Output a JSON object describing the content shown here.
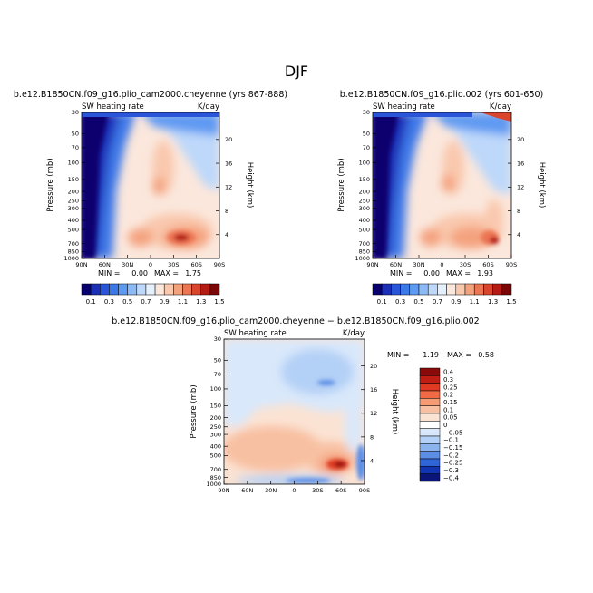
{
  "page_title": "DJF",
  "chart_data": [
    {
      "type": "heatmap",
      "title": "b.e12.B1850CN.f09_g16.plio_cam2000.cheyenne (yrs 867-888)",
      "subtitle_left": "SW heating rate",
      "units": "K/day",
      "xlabel": "",
      "ylabel": "Pressure (mb)",
      "y2label": "Height (km)",
      "x_ticks": [
        "90N",
        "60N",
        "30N",
        "0",
        "30S",
        "60S",
        "90S"
      ],
      "y_ticks": [
        "30",
        "50",
        "70",
        "100",
        "150",
        "200",
        "250",
        "300",
        "400",
        "500",
        "700",
        "850",
        "1000"
      ],
      "y2_ticks": [
        "20",
        "16",
        "12",
        "8",
        "4"
      ],
      "stats": {
        "min_label": "MIN =",
        "min": "0.00",
        "max_label": "MAX =",
        "max": "1.75"
      },
      "colorbar_labels": [
        "0.1",
        "0.3",
        "0.5",
        "0.7",
        "0.9",
        "1.1",
        "1.3",
        "1.5"
      ]
    },
    {
      "type": "heatmap",
      "title": "b.e12.B1850CN.f09_g16.plio.002 (yrs 601-650)",
      "subtitle_left": "SW heating rate",
      "units": "K/day",
      "xlabel": "",
      "ylabel": "Pressure (mb)",
      "y2label": "Height (km)",
      "x_ticks": [
        "90N",
        "60N",
        "30N",
        "0",
        "30S",
        "60S",
        "90S"
      ],
      "y_ticks": [
        "30",
        "50",
        "70",
        "100",
        "150",
        "200",
        "250",
        "300",
        "400",
        "500",
        "700",
        "850",
        "1000"
      ],
      "y2_ticks": [
        "20",
        "16",
        "12",
        "8",
        "4"
      ],
      "stats": {
        "min_label": "MIN =",
        "min": "0.00",
        "max_label": "MAX =",
        "max": "1.93"
      },
      "colorbar_labels": [
        "0.1",
        "0.3",
        "0.5",
        "0.7",
        "0.9",
        "1.1",
        "1.3",
        "1.5"
      ]
    },
    {
      "type": "heatmap",
      "title": "b.e12.B1850CN.f09_g16.plio_cam2000.cheyenne − b.e12.B1850CN.f09_g16.plio.002",
      "subtitle_left": "SW heating rate",
      "units": "K/day",
      "xlabel": "",
      "ylabel": "Pressure (mb)",
      "y2label": "Height (km)",
      "x_ticks": [
        "90N",
        "60N",
        "30N",
        "0",
        "30S",
        "60S",
        "90S"
      ],
      "y_ticks": [
        "30",
        "50",
        "70",
        "100",
        "150",
        "200",
        "250",
        "300",
        "400",
        "500",
        "700",
        "850",
        "1000"
      ],
      "y2_ticks": [
        "20",
        "16",
        "12",
        "8",
        "4"
      ],
      "stats": {
        "min_label": "MIN =",
        "min": "−1.19",
        "max_label": "MAX =",
        "max": "0.58"
      },
      "colorbar_labels": [
        "0.4",
        "0.3",
        "0.25",
        "0.2",
        "0.15",
        "0.1",
        "0.05",
        "0",
        "−0.05",
        "−0.1",
        "−0.15",
        "−0.2",
        "−0.25",
        "−0.3",
        "−0.4"
      ]
    }
  ],
  "colors": {
    "seq_palette": [
      "#08006e",
      "#1a2fb5",
      "#2a55d8",
      "#3d78e8",
      "#5f9af2",
      "#8cbaf7",
      "#bdd8fa",
      "#e4f0fc",
      "#fbe7dc",
      "#f9c8ad",
      "#f4a27e",
      "#ec7553",
      "#d9452d",
      "#b31b14",
      "#7a0607"
    ],
    "div_palette": [
      "#8a0a0a",
      "#c01d14",
      "#e03a22",
      "#ef6a45",
      "#f49a74",
      "#f8c0a2",
      "#fbe3d3",
      "#ffffff",
      "#d9e8fb",
      "#b3d0f6",
      "#8bb4ef",
      "#5c8ee6",
      "#2f63d6",
      "#1234b2",
      "#0b1478"
    ]
  }
}
